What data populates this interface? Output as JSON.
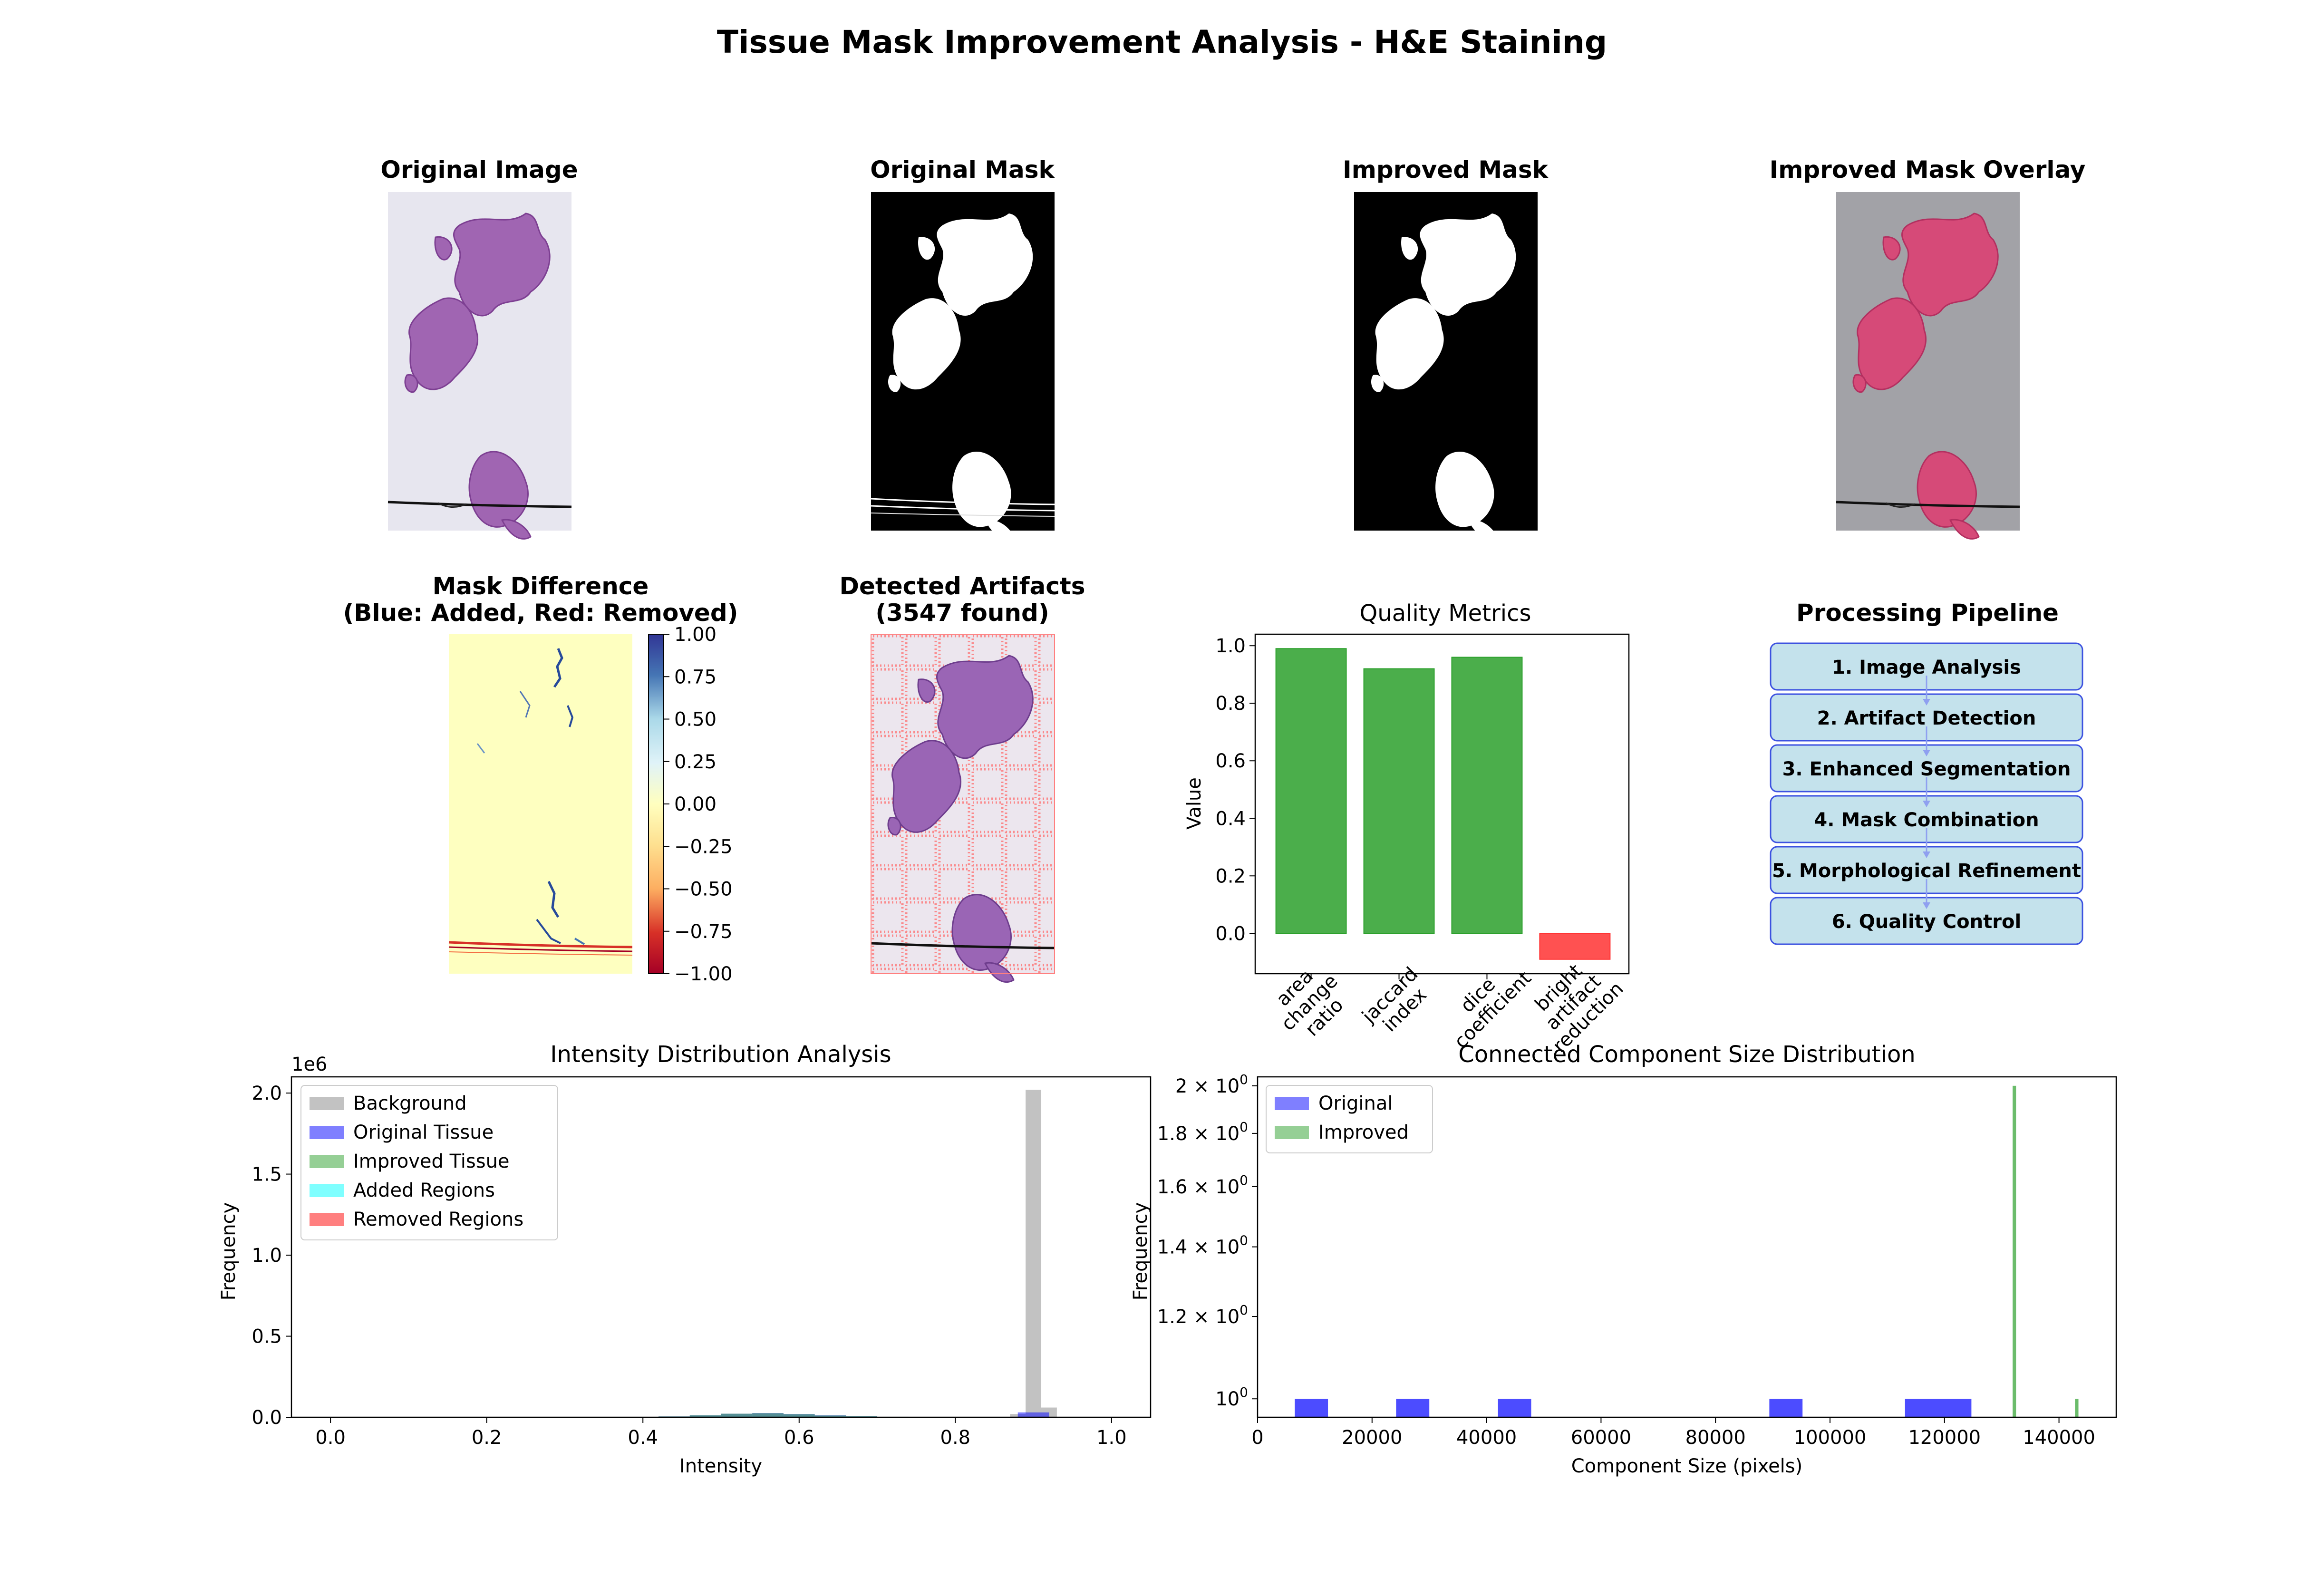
{
  "figure": {
    "title": "Tissue Mask Improvement Analysis - H&E Staining"
  },
  "panels": {
    "original_image": {
      "title": "Original Image"
    },
    "original_mask": {
      "title": "Original Mask"
    },
    "improved_mask": {
      "title": "Improved Mask"
    },
    "overlay": {
      "title": "Improved Mask Overlay"
    },
    "difference": {
      "title_line1": "Mask Difference",
      "title_line2": "(Blue: Added, Red: Removed)",
      "colorbar_ticks": [
        "1.00",
        "0.75",
        "0.50",
        "0.25",
        "0.00",
        "−0.25",
        "−0.50",
        "−0.75",
        "−1.00"
      ]
    },
    "artifacts": {
      "title_line1": "Detected Artifacts",
      "title_line2": "(3547 found)"
    },
    "pipeline": {
      "title": "Processing Pipeline",
      "steps": [
        "1. Image Analysis",
        "2. Artifact Detection",
        "3. Enhanced Segmentation",
        "4. Mask Combination",
        "5. Morphological Refinement",
        "6. Quality Control"
      ]
    }
  },
  "chart_data": [
    {
      "type": "bar",
      "title": "Quality Metrics",
      "xlabel": "",
      "ylabel": "Value",
      "categories": [
        "area\nchange\nratio",
        "jaccard\nindex",
        "dice\ncoefficient",
        "bright\nartifact\nreduction"
      ],
      "values": [
        0.99,
        0.92,
        0.96,
        -0.09
      ],
      "colors": [
        "#2ca02c",
        "#2ca02c",
        "#2ca02c",
        "#ff3333"
      ],
      "ylim": [
        -0.14,
        1.04
      ],
      "yticks": [
        "0.0",
        "0.2",
        "0.4",
        "0.6",
        "0.8",
        "1.0"
      ],
      "grid": false
    },
    {
      "type": "bar",
      "title": "Intensity Distribution Analysis",
      "xlabel": "Intensity",
      "ylabel": "Frequency",
      "y_multiplier": "1e6",
      "xlim": [
        -0.05,
        1.05
      ],
      "ylim": [
        0,
        2.1
      ],
      "xticks": [
        "0.0",
        "0.2",
        "0.4",
        "0.6",
        "0.8",
        "1.0"
      ],
      "yticks": [
        "0.0",
        "0.5",
        "1.0",
        "1.5",
        "2.0"
      ],
      "legend_position": "top-left",
      "series": [
        {
          "name": "Background",
          "color": "#999999",
          "bins": [
            [
              0.89,
              0.91,
              2.02
            ],
            [
              0.91,
              0.93,
              0.06
            ],
            [
              0.87,
              0.89,
              0.02
            ]
          ]
        },
        {
          "name": "Original Tissue",
          "color": "#0000ff",
          "bins": [
            [
              0.42,
              0.46,
              0.005
            ],
            [
              0.46,
              0.5,
              0.012
            ],
            [
              0.5,
              0.54,
              0.022
            ],
            [
              0.54,
              0.58,
              0.026
            ],
            [
              0.58,
              0.62,
              0.02
            ],
            [
              0.62,
              0.66,
              0.012
            ],
            [
              0.66,
              0.7,
              0.006
            ],
            [
              0.7,
              0.74,
              0.003
            ],
            [
              0.88,
              0.92,
              0.03
            ]
          ]
        },
        {
          "name": "Improved Tissue",
          "color": "#2ca02c",
          "bins": [
            [
              0.42,
              0.46,
              0.005
            ],
            [
              0.46,
              0.5,
              0.012
            ],
            [
              0.5,
              0.54,
              0.022
            ],
            [
              0.54,
              0.58,
              0.025
            ],
            [
              0.58,
              0.62,
              0.019
            ],
            [
              0.62,
              0.66,
              0.011
            ],
            [
              0.66,
              0.7,
              0.006
            ],
            [
              0.7,
              0.74,
              0.003
            ]
          ]
        },
        {
          "name": "Added Regions",
          "color": "#00ffff",
          "bins": []
        },
        {
          "name": "Removed Regions",
          "color": "#ff0000",
          "bins": []
        }
      ]
    },
    {
      "type": "bar",
      "title": "Connected Component Size Distribution",
      "xlabel": "Component Size (pixels)",
      "ylabel": "Frequency",
      "yscale": "log",
      "xlim": [
        0,
        150000
      ],
      "ylim": [
        0.96,
        2.04
      ],
      "xticks": [
        0,
        20000,
        40000,
        60000,
        80000,
        100000,
        120000,
        140000
      ],
      "xtick_labels": [
        "0",
        "20000",
        "40000",
        "60000",
        "80000",
        "100000",
        "120000",
        "140000"
      ],
      "yticks": [
        1.0,
        1.2,
        1.4,
        1.6,
        1.8,
        2.0
      ],
      "ytick_bases": [
        "10",
        "1.2 × 10",
        "1.4 × 10",
        "1.6 × 10",
        "1.8 × 10",
        "2 × 10"
      ],
      "ytick_exponent": "0",
      "legend_position": "top-left",
      "series": [
        {
          "name": "Original",
          "color": "#0000ff",
          "bins": [
            [
              6500,
              12300,
              1
            ],
            [
              24200,
              30000,
              1
            ],
            [
              42000,
              47800,
              1
            ],
            [
              89400,
              95200,
              1
            ],
            [
              113100,
              124700,
              1
            ]
          ]
        },
        {
          "name": "Improved",
          "color": "#2ca02c",
          "bins": [
            [
              131900,
              132500,
              2
            ],
            [
              142800,
              143400,
              1
            ]
          ]
        }
      ]
    }
  ]
}
